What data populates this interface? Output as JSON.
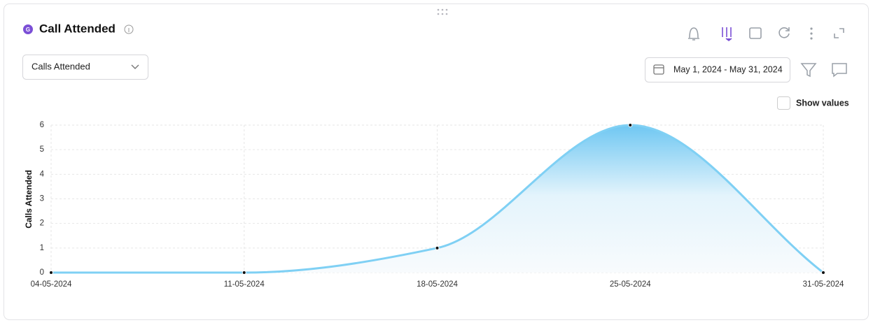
{
  "widget": {
    "title": "Call Attended",
    "metric_select": "Calls Attended",
    "date_range": "May 1, 2024 - May 31, 2024",
    "show_values": "Show values"
  },
  "chart_data": {
    "type": "line",
    "y_label": "Calls Attended",
    "categories": [
      "04-05-2024",
      "11-05-2024",
      "18-05-2024",
      "25-05-2024",
      "31-05-2024"
    ],
    "values": [
      0,
      0,
      1,
      6,
      0
    ],
    "color": "#7fd0f4",
    "ylim": [
      0,
      6
    ],
    "yticks": [
      0,
      1,
      2,
      3,
      4,
      5,
      6
    ],
    "grid": true,
    "area": true
  }
}
